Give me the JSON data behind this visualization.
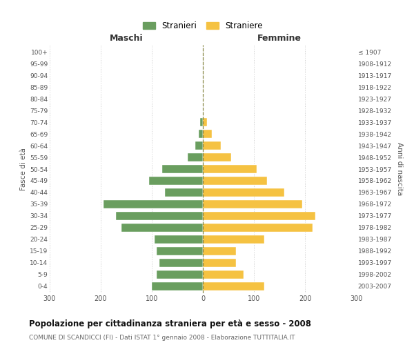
{
  "age_groups": [
    "0-4",
    "5-9",
    "10-14",
    "15-19",
    "20-24",
    "25-29",
    "30-34",
    "35-39",
    "40-44",
    "45-49",
    "50-54",
    "55-59",
    "60-64",
    "65-69",
    "70-74",
    "75-79",
    "80-84",
    "85-89",
    "90-94",
    "95-99",
    "100+"
  ],
  "birth_years": [
    "2003-2007",
    "1998-2002",
    "1993-1997",
    "1988-1992",
    "1983-1987",
    "1978-1982",
    "1973-1977",
    "1968-1972",
    "1963-1967",
    "1958-1962",
    "1953-1957",
    "1948-1952",
    "1943-1947",
    "1938-1942",
    "1933-1937",
    "1928-1932",
    "1923-1927",
    "1918-1922",
    "1913-1917",
    "1908-1912",
    "≤ 1907"
  ],
  "males": [
    100,
    90,
    85,
    90,
    95,
    160,
    170,
    195,
    75,
    105,
    80,
    30,
    15,
    8,
    5,
    0,
    0,
    0,
    0,
    0,
    0
  ],
  "females": [
    120,
    80,
    65,
    65,
    120,
    215,
    220,
    195,
    160,
    125,
    105,
    55,
    35,
    18,
    8,
    0,
    0,
    0,
    0,
    0,
    0
  ],
  "male_color": "#6a9e5f",
  "female_color": "#f5c242",
  "background_color": "#ffffff",
  "grid_color": "#cccccc",
  "title": "Popolazione per cittadinanza straniera per età e sesso - 2008",
  "subtitle": "COMUNE DI SCANDICCI (FI) - Dati ISTAT 1° gennaio 2008 - Elaborazione TUTTITALIA.IT",
  "xlabel_left": "Maschi",
  "xlabel_right": "Femmine",
  "ylabel_left": "Fasce di età",
  "ylabel_right": "Anni di nascita",
  "legend_male": "Stranieri",
  "legend_female": "Straniere",
  "xlim": 300
}
